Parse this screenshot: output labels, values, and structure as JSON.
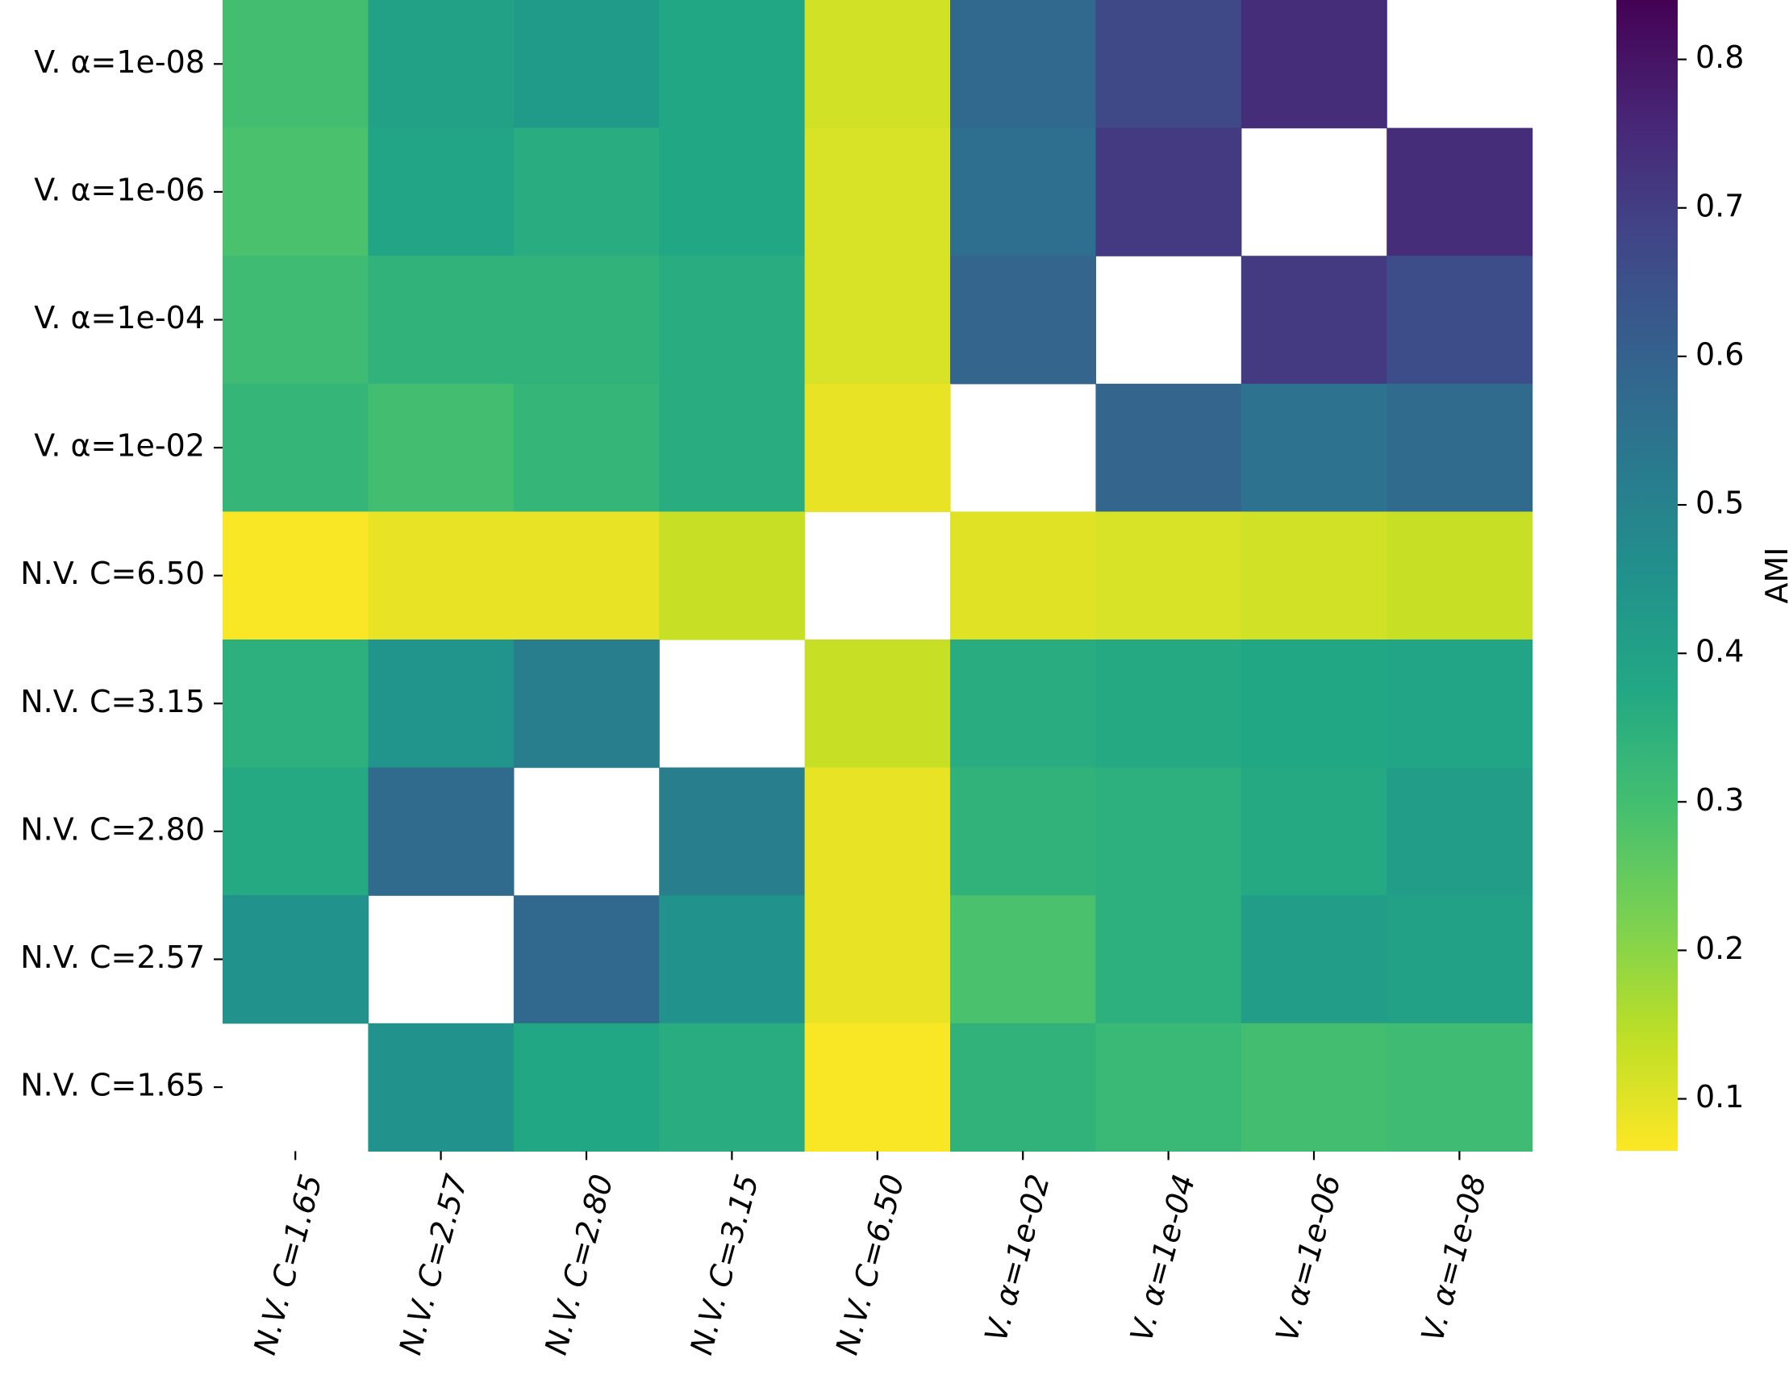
{
  "chart_data": {
    "type": "heatmap",
    "title": "",
    "xlabel": "",
    "ylabel": "",
    "x_categories": [
      "N.V. C=1.65",
      "N.V. C=2.57",
      "N.V. C=2.80",
      "N.V. C=3.15",
      "N.V. C=6.50",
      "V. α=1e-02",
      "V. α=1e-04",
      "V. α=1e-06",
      "V. α=1e-08"
    ],
    "y_categories": [
      "V. α=1e-08",
      "V. α=1e-06",
      "V. α=1e-04",
      "V. α=1e-02",
      "N.V. C=6.50",
      "N.V. C=3.15",
      "N.V. C=2.80",
      "N.V. C=2.57",
      "N.V. C=1.65"
    ],
    "values": [
      [
        0.3,
        0.4,
        0.42,
        0.38,
        0.12,
        0.58,
        0.67,
        0.74,
        null
      ],
      [
        0.29,
        0.39,
        0.36,
        0.38,
        0.11,
        0.56,
        0.71,
        null,
        0.74
      ],
      [
        0.31,
        0.34,
        0.34,
        0.36,
        0.11,
        0.59,
        null,
        0.71,
        0.66
      ],
      [
        0.33,
        0.3,
        0.33,
        0.36,
        0.09,
        null,
        0.59,
        0.55,
        0.57
      ],
      [
        0.07,
        0.09,
        0.09,
        0.13,
        null,
        0.1,
        0.11,
        0.12,
        0.13
      ],
      [
        0.35,
        0.44,
        0.51,
        null,
        0.13,
        0.36,
        0.37,
        0.38,
        0.39
      ],
      [
        0.37,
        0.57,
        null,
        0.51,
        0.09,
        0.34,
        0.35,
        0.37,
        0.41
      ],
      [
        0.45,
        null,
        0.58,
        0.45,
        0.09,
        0.29,
        0.35,
        0.41,
        0.4
      ],
      [
        null,
        0.45,
        0.38,
        0.36,
        0.07,
        0.34,
        0.32,
        0.3,
        0.31
      ]
    ],
    "colormap": "viridis_r",
    "colorbar": {
      "label": "AMI",
      "range": [
        0.065,
        0.84
      ],
      "ticks": [
        0.1,
        0.2,
        0.3,
        0.4,
        0.5,
        0.6,
        0.7,
        0.8
      ],
      "tick_labels": [
        "0.1",
        "0.2",
        "0.3",
        "0.4",
        "0.5",
        "0.6",
        "0.7",
        "0.8"
      ]
    },
    "grid": false
  }
}
